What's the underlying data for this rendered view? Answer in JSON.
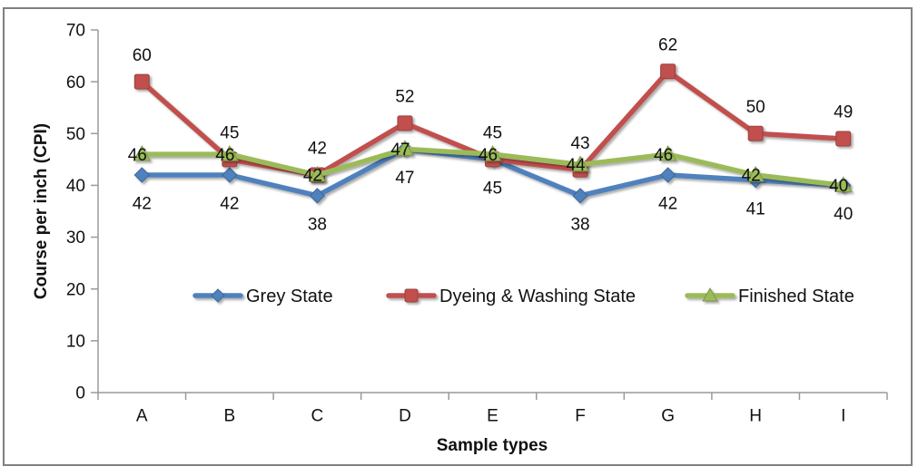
{
  "chart_data": {
    "type": "line",
    "categories": [
      "A",
      "B",
      "C",
      "D",
      "E",
      "F",
      "G",
      "H",
      "I"
    ],
    "series": [
      {
        "name": "Grey State",
        "marker": "diamond",
        "color": "#4F81BD",
        "border": "#3F6797",
        "label_position": "below",
        "values": [
          42,
          42,
          38,
          47,
          45,
          38,
          42,
          41,
          40
        ]
      },
      {
        "name": "Dyeing & Washing State",
        "marker": "square",
        "color": "#C0504D",
        "border": "#9A403E",
        "label_position": "above",
        "values": [
          60,
          45,
          42,
          52,
          45,
          43,
          62,
          50,
          49
        ]
      },
      {
        "name": "Finished State",
        "marker": "triangle",
        "color": "#9BBB59",
        "border": "#7C9647",
        "label_position": "center",
        "values": [
          46,
          46,
          42,
          47,
          46,
          44,
          46,
          42,
          40
        ]
      }
    ],
    "xlabel": "Sample types",
    "ylabel": "Course per inch (CPI)",
    "ylim": [
      0,
      70
    ],
    "yticks": [
      0,
      10,
      20,
      30,
      40,
      50,
      60,
      70
    ],
    "grid": false,
    "legend_position": "inside-middle",
    "legend": [
      "Grey State",
      "Dyeing & Washing State",
      "Finished State"
    ]
  },
  "colors": {
    "frame_border": "#808080",
    "axis": "#9A9A9A",
    "text": "#111111",
    "background": "#FFFFFF"
  }
}
